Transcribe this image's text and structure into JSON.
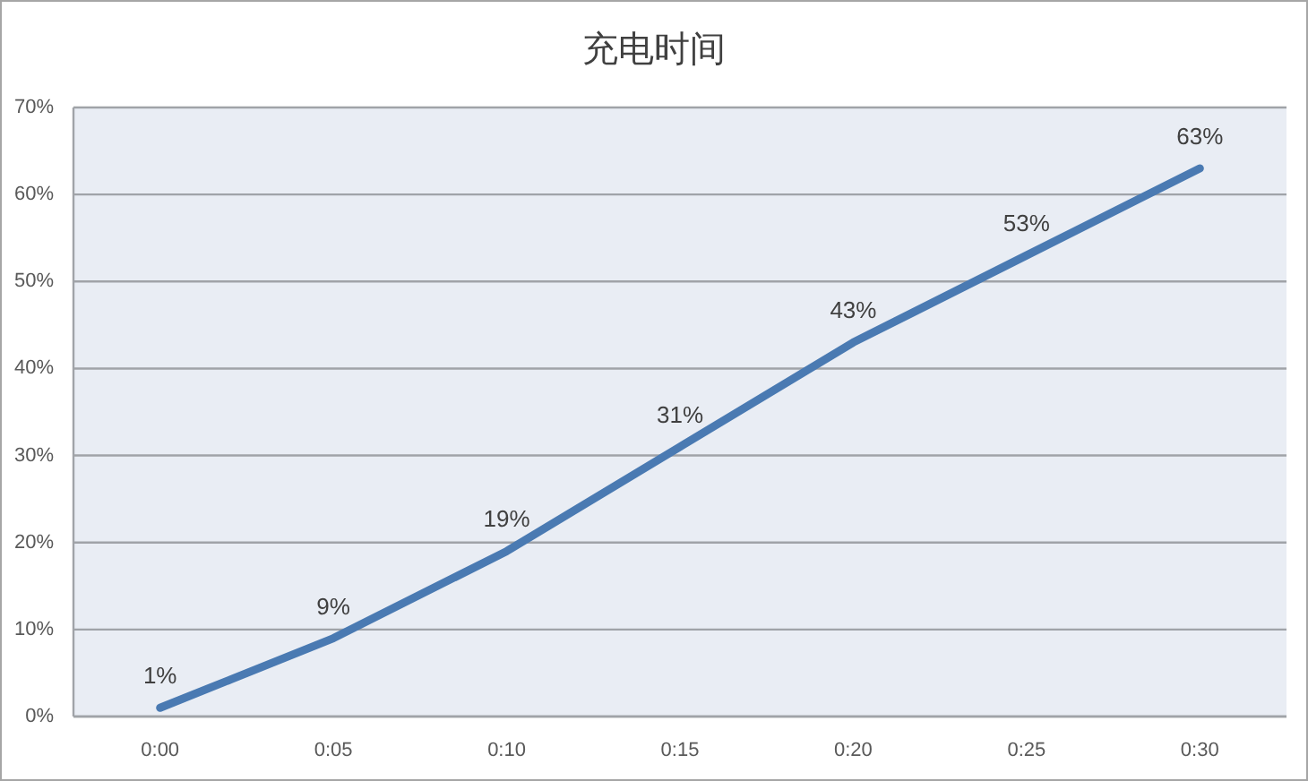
{
  "chart_data": {
    "type": "line",
    "title": "充电时间",
    "categories": [
      "0:00",
      "0:05",
      "0:10",
      "0:15",
      "0:20",
      "0:25",
      "0:30"
    ],
    "values": [
      1,
      9,
      19,
      31,
      43,
      53,
      63
    ],
    "value_labels": [
      "1%",
      "9%",
      "19%",
      "31%",
      "43%",
      "53%",
      "63%"
    ],
    "color": "#4a7ab2",
    "ylim": [
      0,
      70
    ],
    "yticks": [
      {
        "value": 0,
        "label": "0%"
      },
      {
        "value": 10,
        "label": "10%"
      },
      {
        "value": 20,
        "label": "20%"
      },
      {
        "value": 30,
        "label": "30%"
      },
      {
        "value": 40,
        "label": "40%"
      },
      {
        "value": 50,
        "label": "50%"
      },
      {
        "value": 60,
        "label": "60%"
      },
      {
        "value": 70,
        "label": "70%"
      }
    ],
    "grid": "y"
  }
}
